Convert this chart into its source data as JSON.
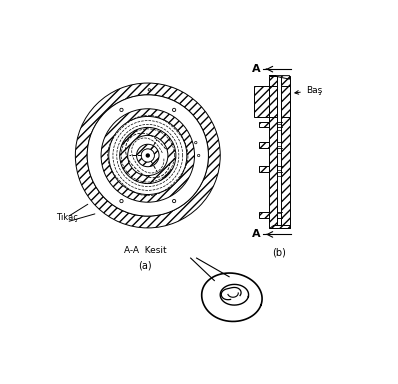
{
  "bg_color": "#ffffff",
  "line_color": "#000000",
  "label_tikac": "Tıkaç",
  "label_aa_kesit": "A-A  Kesit",
  "label_a": "(a)",
  "label_b": "(b)",
  "label_bas": "Baş",
  "label_A_top": "A",
  "label_A_bot": "A",
  "fig_width": 3.98,
  "fig_height": 3.84,
  "dpi": 100
}
